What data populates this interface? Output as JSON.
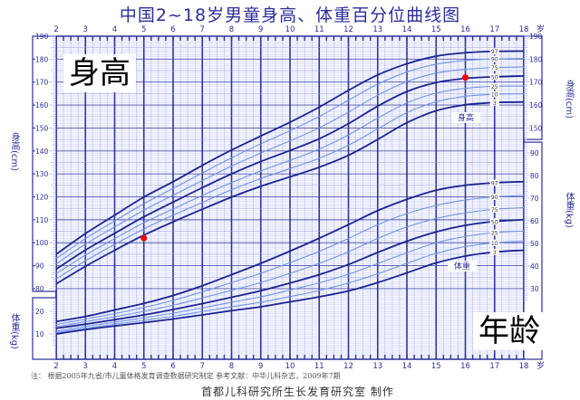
{
  "title": "中国2~18岁男童身高、体重百分位曲线图",
  "badges": {
    "height": "身高",
    "age": "年龄"
  },
  "axis_labels": {
    "age_unit": "岁",
    "height_left": "身高(cm)",
    "height_right": "身高(cm)",
    "weight_left": "体重(kg)",
    "weight_right": "体重(kg)",
    "height_curve_label": "身高",
    "weight_curve_label": "体重"
  },
  "notes": {
    "source": "注：  根据2005年九省/市儿童体格发育调查数据研究制定          参考文献：中华儿科杂志，2009年7期",
    "producer": "首都儿科研究所生长发育研究室  制作"
  },
  "colors": {
    "grid_major": "#2b2f9a",
    "grid_minor": "#9aa3e6",
    "curve_dark": "#1c2491",
    "curve_light": "#6f94e6",
    "marker": "#ff0000",
    "background": "#f3f4ff"
  },
  "chart_data": {
    "type": "line",
    "title": "中国2~18岁男童身高、体重百分位曲线图",
    "xlabel": "年龄(岁)",
    "ylabel": "身高(cm) / 体重(kg)",
    "x": [
      2,
      3,
      4,
      5,
      6,
      7,
      8,
      9,
      10,
      11,
      12,
      13,
      14,
      15,
      16,
      17,
      18
    ],
    "xlim": [
      2,
      18
    ],
    "height_ylim": [
      80,
      190
    ],
    "height_right_ylim": [
      145,
      190
    ],
    "weight_left_ylim": [
      5,
      25
    ],
    "weight_right_ylim": [
      25,
      95
    ],
    "grid": true,
    "percentiles": [
      "3",
      "10",
      "25",
      "50",
      "75",
      "90",
      "97"
    ],
    "height_series": [
      {
        "name": "P3",
        "values": [
          82.1,
          89.7,
          96.7,
          103.3,
          109.1,
          114.6,
          119.9,
          124.6,
          128.7,
          132.9,
          138.1,
          145.0,
          152.3,
          157.5,
          160.1,
          161.1,
          161.3
        ]
      },
      {
        "name": "P10",
        "values": [
          84.3,
          92.1,
          99.3,
          106.0,
          112.0,
          117.6,
          123.1,
          128.0,
          132.3,
          136.8,
          142.5,
          149.6,
          156.7,
          161.4,
          163.8,
          164.7,
          164.9
        ]
      },
      {
        "name": "P25",
        "values": [
          86.5,
          94.6,
          101.8,
          108.7,
          114.7,
          120.6,
          126.2,
          131.3,
          135.9,
          140.8,
          147.0,
          154.3,
          160.9,
          165.2,
          167.3,
          168.2,
          168.3
        ]
      },
      {
        "name": "P50",
        "values": [
          88.5,
          96.8,
          104.1,
          111.3,
          117.7,
          124.0,
          130.0,
          135.4,
          140.2,
          145.3,
          151.9,
          159.5,
          165.9,
          169.8,
          171.6,
          172.3,
          172.7
        ]
      },
      {
        "name": "P75",
        "values": [
          90.8,
          99.4,
          106.9,
          114.2,
          120.7,
          127.1,
          133.4,
          139.1,
          144.4,
          150.1,
          156.9,
          164.3,
          170.2,
          173.9,
          175.6,
          176.3,
          176.6
        ]
      },
      {
        "name": "P90",
        "values": [
          93.1,
          101.8,
          109.5,
          117.0,
          123.7,
          130.4,
          137.0,
          143.1,
          148.8,
          155.0,
          162.1,
          169.1,
          174.4,
          177.8,
          179.4,
          180.1,
          180.3
        ]
      },
      {
        "name": "P97",
        "values": [
          95.0,
          104.0,
          112.0,
          119.9,
          126.6,
          133.7,
          140.4,
          146.5,
          152.5,
          159.1,
          166.4,
          173.1,
          178.0,
          181.3,
          182.8,
          183.4,
          183.5
        ]
      }
    ],
    "weight_series": [
      {
        "name": "P3",
        "values": [
          10.0,
          11.9,
          13.5,
          15.0,
          16.6,
          18.4,
          20.3,
          22.0,
          24.2,
          26.4,
          29.0,
          32.7,
          37.0,
          41.4,
          44.4,
          46.2,
          47.0
        ]
      },
      {
        "name": "P10",
        "values": [
          10.6,
          12.5,
          14.3,
          16.0,
          17.8,
          19.9,
          22.0,
          24.0,
          26.5,
          29.2,
          32.5,
          36.6,
          41.2,
          45.6,
          48.6,
          50.3,
          51.0
        ]
      },
      {
        "name": "P25",
        "values": [
          11.2,
          13.3,
          15.2,
          17.1,
          19.2,
          21.5,
          24.0,
          26.4,
          29.4,
          32.6,
          36.4,
          41.1,
          45.9,
          50.3,
          53.1,
          54.8,
          55.5
        ]
      },
      {
        "name": "P50",
        "values": [
          12.5,
          14.3,
          16.3,
          18.4,
          20.8,
          23.4,
          26.2,
          29.1,
          32.5,
          36.2,
          40.7,
          46.0,
          51.0,
          55.1,
          58.0,
          59.7,
          60.5
        ]
      },
      {
        "name": "P75",
        "values": [
          13.2,
          15.4,
          17.6,
          20.0,
          22.7,
          25.9,
          29.3,
          32.7,
          36.8,
          41.2,
          46.3,
          52.2,
          57.3,
          61.0,
          63.5,
          65.1,
          65.8
        ]
      },
      {
        "name": "P90",
        "values": [
          14.2,
          16.5,
          19.0,
          21.7,
          24.8,
          28.6,
          32.7,
          36.8,
          41.5,
          46.5,
          52.2,
          58.3,
          63.2,
          66.8,
          69.2,
          70.6,
          71.2
        ]
      },
      {
        "name": "P97",
        "values": [
          15.5,
          17.7,
          20.6,
          23.5,
          27.0,
          31.3,
          36.2,
          41.2,
          46.6,
          52.3,
          58.3,
          64.5,
          69.5,
          73.5,
          75.7,
          76.8,
          77.3
        ]
      }
    ],
    "markers": [
      {
        "age": 5,
        "height": 102,
        "color": "#ff0000"
      },
      {
        "age": 16,
        "height": 172,
        "color": "#ff0000"
      }
    ],
    "annotations": [
      "身高",
      "体重",
      "年龄"
    ]
  }
}
